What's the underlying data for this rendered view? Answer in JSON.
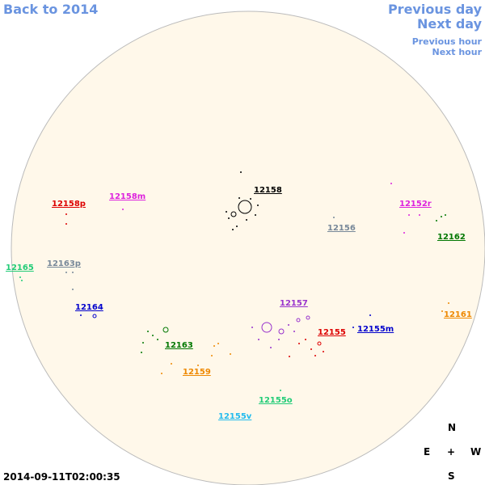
{
  "nav": {
    "back_label": "Back to 2014",
    "prev_day_label": "Previous day",
    "next_day_label": "Next day",
    "prev_hour_label": "Previous hour",
    "next_hour_label": "Next hour"
  },
  "timestamp": "2014-09-11T02:00:35",
  "compass": {
    "n": "N",
    "s": "S",
    "e": "E",
    "w": "W",
    "center": "+"
  },
  "disk_color": "#fff8ea",
  "disk_edge_color": "#bbbbbb",
  "regions": [
    {
      "id": "12158",
      "color": "#000000"
    },
    {
      "id": "12158p",
      "color": "#dd0000"
    },
    {
      "id": "12158m",
      "color": "#dd22dd"
    },
    {
      "id": "12152r",
      "color": "#dd22dd"
    },
    {
      "id": "12156",
      "color": "#778899"
    },
    {
      "id": "12162",
      "color": "#007700"
    },
    {
      "id": "12165",
      "color": "#22cc77"
    },
    {
      "id": "12163p",
      "color": "#778899"
    },
    {
      "id": "12164",
      "color": "#0000cc"
    },
    {
      "id": "12157",
      "color": "#9933cc"
    },
    {
      "id": "12161",
      "color": "#ee8800"
    },
    {
      "id": "12155",
      "color": "#dd0000"
    },
    {
      "id": "12155m",
      "color": "#0000cc"
    },
    {
      "id": "12163",
      "color": "#007700"
    },
    {
      "id": "12159",
      "color": "#ee8800"
    },
    {
      "id": "12155o",
      "color": "#22cc77"
    },
    {
      "id": "12155v",
      "color": "#22bbee"
    }
  ]
}
